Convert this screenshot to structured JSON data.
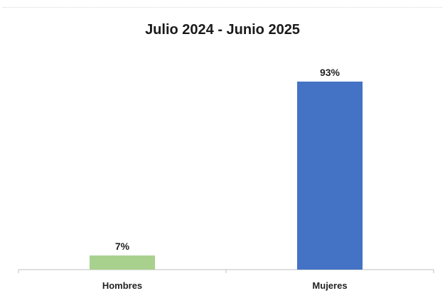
{
  "chart_data": {
    "type": "bar",
    "title": "Julio 2024 - Junio 2025",
    "categories": [
      "Hombres",
      "Mujeres"
    ],
    "values": [
      7,
      93
    ],
    "data_labels": [
      "7%",
      "93%"
    ],
    "colors": [
      "#a9d18e",
      "#4472c4"
    ],
    "ylim": [
      0,
      100
    ],
    "grid": false,
    "legend": "none"
  }
}
